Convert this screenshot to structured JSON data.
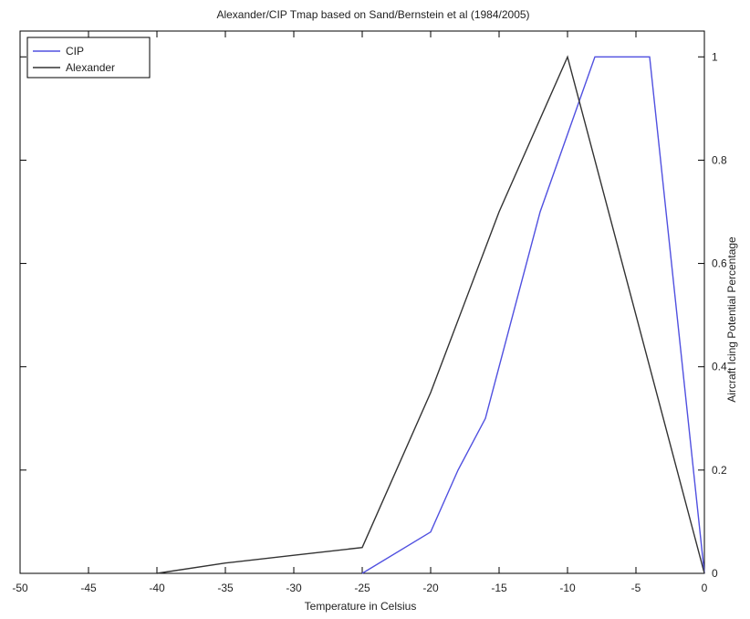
{
  "chart_data": {
    "type": "line",
    "title": "Alexander/CIP Tmap based on Sand/Bernstein et al (1984/2005)",
    "xlabel": "Temperature in Celsius",
    "ylabel": "Aircraft Icing Potential Percentage",
    "xlim": [
      -50,
      0
    ],
    "ylim": [
      0,
      1.05
    ],
    "xticks": [
      -50,
      -45,
      -40,
      -35,
      -30,
      -25,
      -20,
      -15,
      -10,
      -5,
      0
    ],
    "xtick_labels": [
      "-50",
      "-45",
      "-40",
      "-35",
      "-30",
      "-25",
      "-20",
      "-15",
      "-10",
      "-5",
      "0"
    ],
    "yticks": [
      0,
      0.2,
      0.4,
      0.6,
      0.8,
      1
    ],
    "ytick_labels": [
      "0",
      "0.2",
      "0.4",
      "0.6",
      "0.8",
      "1"
    ],
    "y_axis_side": "right",
    "grid": false,
    "legend_position": "top-left",
    "series": [
      {
        "name": "CIP",
        "color": "#5050e0",
        "x": [
          -25,
          -20,
          -18,
          -16,
          -14,
          -12,
          -10,
          -8,
          -6,
          -4,
          0
        ],
        "y": [
          0,
          0.08,
          0.2,
          0.3,
          0.5,
          0.7,
          0.85,
          1,
          1,
          1,
          0
        ]
      },
      {
        "name": "Alexander",
        "color": "#333333",
        "x": [
          -40,
          -35,
          -30,
          -25,
          -20,
          -15,
          -10,
          -5,
          0
        ],
        "y": [
          0,
          0.02,
          0.035,
          0.05,
          0.35,
          0.7,
          1,
          0.5,
          0
        ]
      }
    ]
  }
}
